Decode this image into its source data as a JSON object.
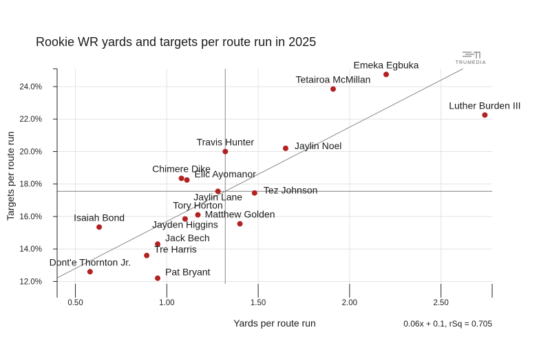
{
  "chart_data": {
    "type": "scatter",
    "title": "Rookie WR yards and targets per route run in 2025",
    "xlabel": "Yards per route run",
    "ylabel": "Targets per route run",
    "xlim": [
      0.4,
      2.78
    ],
    "ylim": [
      11.85,
      25.1
    ],
    "x_ticks": [
      0.5,
      1.0,
      1.5,
      2.0,
      2.5
    ],
    "x_tick_labels": [
      "0.50",
      "1.00",
      "1.50",
      "2.00",
      "2.50"
    ],
    "y_ticks": [
      12,
      14,
      16,
      18,
      20,
      22,
      24
    ],
    "y_tick_labels": [
      "12.0%",
      "14.0%",
      "16.0%",
      "18.0%",
      "20.0%",
      "22.0%",
      "24.0%"
    ],
    "grid": true,
    "mean_x": 1.32,
    "mean_y": 17.55,
    "regression": {
      "slope": 5.8,
      "intercept": 9.9,
      "label": "0.06x + 0.1, rSq = 0.705"
    },
    "point_color": "#b22222",
    "points": [
      {
        "name": "Emeka Egbuka",
        "x": 2.2,
        "y": 24.75,
        "label_pos": "above"
      },
      {
        "name": "Tetairoa McMillan",
        "x": 1.91,
        "y": 23.85,
        "label_pos": "above"
      },
      {
        "name": "Luther Burden III",
        "x": 2.74,
        "y": 22.25,
        "label_pos": "above"
      },
      {
        "name": "Travis Hunter",
        "x": 1.32,
        "y": 20.0,
        "label_pos": "above"
      },
      {
        "name": "Jaylin Noel",
        "x": 1.65,
        "y": 20.2,
        "label_pos": "right"
      },
      {
        "name": "Chimere Dike",
        "x": 1.08,
        "y": 18.35,
        "label_pos": "above"
      },
      {
        "name": "Elic Ayomanor",
        "x": 1.11,
        "y": 18.25,
        "label_pos": "right-up"
      },
      {
        "name": "Jaylin Lane",
        "x": 1.28,
        "y": 17.55,
        "label_pos": "below"
      },
      {
        "name": "Tez Johnson",
        "x": 1.48,
        "y": 17.45,
        "label_pos": "right"
      },
      {
        "name": "Tory Horton",
        "x": 1.17,
        "y": 16.1,
        "label_pos": "above"
      },
      {
        "name": "Matthew Golden",
        "x": 1.4,
        "y": 15.55,
        "label_pos": "above"
      },
      {
        "name": "Jayden Higgins",
        "x": 1.1,
        "y": 15.85,
        "label_pos": "below"
      },
      {
        "name": "Isaiah Bond",
        "x": 0.63,
        "y": 15.35,
        "label_pos": "above"
      },
      {
        "name": "Jack Bech",
        "x": 0.95,
        "y": 14.3,
        "label_pos": "right-up"
      },
      {
        "name": "Tre Harris",
        "x": 0.89,
        "y": 13.6,
        "label_pos": "right-up"
      },
      {
        "name": "Dont'e Thornton Jr.",
        "x": 0.58,
        "y": 12.6,
        "label_pos": "above"
      },
      {
        "name": "Pat Bryant",
        "x": 0.95,
        "y": 12.2,
        "label_pos": "right-up"
      }
    ]
  },
  "logo": {
    "text": "TRUMEDIA"
  }
}
